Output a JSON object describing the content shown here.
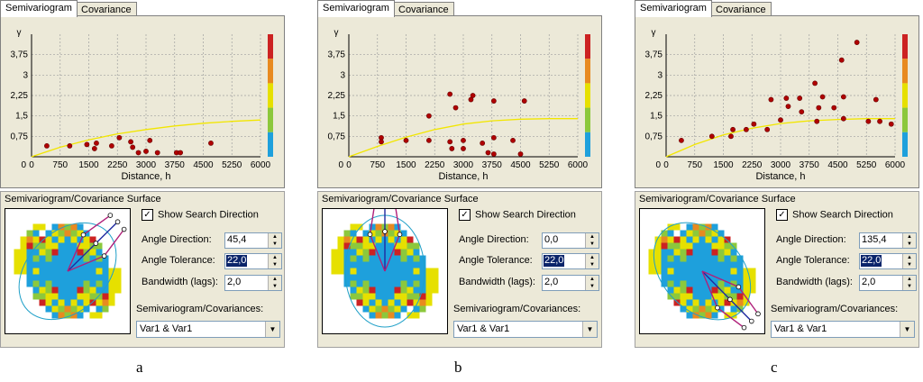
{
  "panels": [
    {
      "caption": "a",
      "tabs": [
        "Semivariogram",
        "Covariance"
      ],
      "surface_title": "Semivariogram/Covariance Surface",
      "show_search_direction": {
        "checked": true,
        "label": "Show Search Direction"
      },
      "angle_direction": {
        "label": "Angle Direction:",
        "value": "45,4"
      },
      "angle_tolerance": {
        "label": "Angle Tolerance:",
        "value": "22,0"
      },
      "bandwidth": {
        "label": "Bandwidth (lags):",
        "value": "2,0"
      },
      "covariances_label": "Semivariogram/Covariances:",
      "covariances_value": "Var1 & Var1",
      "chart_data": {
        "type": "scatter",
        "xlabel": "Distance, h",
        "ylabel": "γ",
        "x_ticks": [
          "0",
          "750",
          "1500",
          "2250",
          "3000",
          "3750",
          "4500",
          "5250",
          "6000"
        ],
        "y_ticks": [
          "0,75",
          "1,5",
          "2,25",
          "3",
          "3,75"
        ],
        "xlim": [
          0,
          6000
        ],
        "ylim": [
          0,
          4.5
        ],
        "points": [
          [
            400,
            0.4
          ],
          [
            1000,
            0.4
          ],
          [
            1450,
            0.45
          ],
          [
            1650,
            0.3
          ],
          [
            1700,
            0.5
          ],
          [
            2100,
            0.4
          ],
          [
            2300,
            0.7
          ],
          [
            2600,
            0.55
          ],
          [
            2650,
            0.35
          ],
          [
            2800,
            0.15
          ],
          [
            3000,
            0.2
          ],
          [
            3100,
            0.6
          ],
          [
            3300,
            0.15
          ],
          [
            3800,
            0.15
          ],
          [
            3900,
            0.15
          ],
          [
            4700,
            0.5
          ]
        ],
        "model_curve": [
          [
            0,
            0.0
          ],
          [
            750,
            0.35
          ],
          [
            1500,
            0.62
          ],
          [
            2250,
            0.84
          ],
          [
            3000,
            1.0
          ],
          [
            3750,
            1.13
          ],
          [
            4500,
            1.23
          ],
          [
            5250,
            1.3
          ],
          [
            6000,
            1.35
          ]
        ]
      }
    },
    {
      "caption": "b",
      "tabs": [
        "Semivariogram",
        "Covariance"
      ],
      "surface_title": "Semivariogram/Covariance Surface",
      "show_search_direction": {
        "checked": true,
        "label": "Show Search Direction"
      },
      "angle_direction": {
        "label": "Angle Direction:",
        "value": "0,0"
      },
      "angle_tolerance": {
        "label": "Angle Tolerance:",
        "value": "22,0"
      },
      "bandwidth": {
        "label": "Bandwidth (lags):",
        "value": "2,0"
      },
      "covariances_label": "Semivariogram/Covariances:",
      "covariances_value": "Var1 & Var1",
      "chart_data": {
        "type": "scatter",
        "xlabel": "Distance, h",
        "ylabel": "γ",
        "x_ticks": [
          "0",
          "750",
          "1500",
          "2250",
          "3000",
          "3750",
          "4500",
          "5250",
          "6000"
        ],
        "y_ticks": [
          "0,75",
          "1,5",
          "2,25",
          "3",
          "3,75"
        ],
        "xlim": [
          0,
          6000
        ],
        "ylim": [
          0,
          4.5
        ],
        "points": [
          [
            850,
            0.7
          ],
          [
            850,
            0.55
          ],
          [
            1500,
            0.6
          ],
          [
            2100,
            0.6
          ],
          [
            2100,
            1.5
          ],
          [
            2650,
            2.3
          ],
          [
            2650,
            0.55
          ],
          [
            2700,
            0.3
          ],
          [
            2800,
            1.8
          ],
          [
            3000,
            0.6
          ],
          [
            3000,
            0.3
          ],
          [
            3200,
            2.1
          ],
          [
            3250,
            2.25
          ],
          [
            3500,
            0.5
          ],
          [
            3650,
            0.15
          ],
          [
            3800,
            0.1
          ],
          [
            3800,
            0.7
          ],
          [
            3800,
            2.05
          ],
          [
            4300,
            0.6
          ],
          [
            4500,
            0.1
          ],
          [
            4600,
            2.05
          ]
        ],
        "model_curve": [
          [
            0,
            0.0
          ],
          [
            750,
            0.38
          ],
          [
            1500,
            0.72
          ],
          [
            2250,
            1.0
          ],
          [
            3000,
            1.2
          ],
          [
            3750,
            1.32
          ],
          [
            4500,
            1.38
          ],
          [
            5250,
            1.4
          ],
          [
            6000,
            1.4
          ]
        ]
      }
    },
    {
      "caption": "c",
      "tabs": [
        "Semivariogram",
        "Covariance"
      ],
      "surface_title": "Semivariogram/Covariance Surface",
      "show_search_direction": {
        "checked": true,
        "label": "Show Search Direction"
      },
      "angle_direction": {
        "label": "Angle Direction:",
        "value": "135,4"
      },
      "angle_tolerance": {
        "label": "Angle Tolerance:",
        "value": "22,0"
      },
      "bandwidth": {
        "label": "Bandwidth (lags):",
        "value": "2,0"
      },
      "covariances_label": "Semivariogram/Covariances:",
      "covariances_value": "Var1 & Var1",
      "chart_data": {
        "type": "scatter",
        "xlabel": "Distance, h",
        "ylabel": "γ",
        "x_ticks": [
          "0",
          "750",
          "1500",
          "2250",
          "3000",
          "3750",
          "4500",
          "5250",
          "6000"
        ],
        "y_ticks": [
          "0,75",
          "1,5",
          "2,25",
          "3",
          "3,75"
        ],
        "xlim": [
          0,
          6000
        ],
        "ylim": [
          0,
          4.5
        ],
        "points": [
          [
            400,
            0.6
          ],
          [
            1200,
            0.75
          ],
          [
            1700,
            0.75
          ],
          [
            1750,
            1.0
          ],
          [
            2100,
            1.0
          ],
          [
            2300,
            1.2
          ],
          [
            2650,
            1.0
          ],
          [
            2750,
            2.1
          ],
          [
            3000,
            1.35
          ],
          [
            3150,
            2.15
          ],
          [
            3200,
            1.85
          ],
          [
            3500,
            2.15
          ],
          [
            3550,
            1.65
          ],
          [
            3900,
            2.7
          ],
          [
            3950,
            1.3
          ],
          [
            4000,
            1.8
          ],
          [
            4100,
            2.2
          ],
          [
            4400,
            1.8
          ],
          [
            4600,
            3.55
          ],
          [
            4650,
            2.2
          ],
          [
            4650,
            1.4
          ],
          [
            5000,
            4.2
          ],
          [
            5300,
            1.3
          ],
          [
            5500,
            2.1
          ],
          [
            5600,
            1.3
          ],
          [
            5900,
            1.2
          ]
        ],
        "model_curve": [
          [
            0,
            0.0
          ],
          [
            750,
            0.45
          ],
          [
            1500,
            0.8
          ],
          [
            2250,
            1.05
          ],
          [
            3000,
            1.22
          ],
          [
            3750,
            1.32
          ],
          [
            4500,
            1.37
          ],
          [
            5250,
            1.4
          ],
          [
            6000,
            1.4
          ]
        ]
      }
    }
  ],
  "colors": {
    "panel_bg": "#ece9d8",
    "model_line": "#f2e600",
    "point_fill": "#b00000",
    "grid": "#a0a0a0",
    "selection": "#0a246a",
    "color_bar": [
      "#cc2222",
      "#e88a20",
      "#e6e000",
      "#8cc83c",
      "#1ea0dc"
    ],
    "surface_colors": [
      "#1ea0dc",
      "#e6e000",
      "#8cc83c",
      "#e88a20",
      "#cc2222"
    ],
    "direction_lines": [
      "#1f2aa0",
      "#b0207a"
    ]
  }
}
